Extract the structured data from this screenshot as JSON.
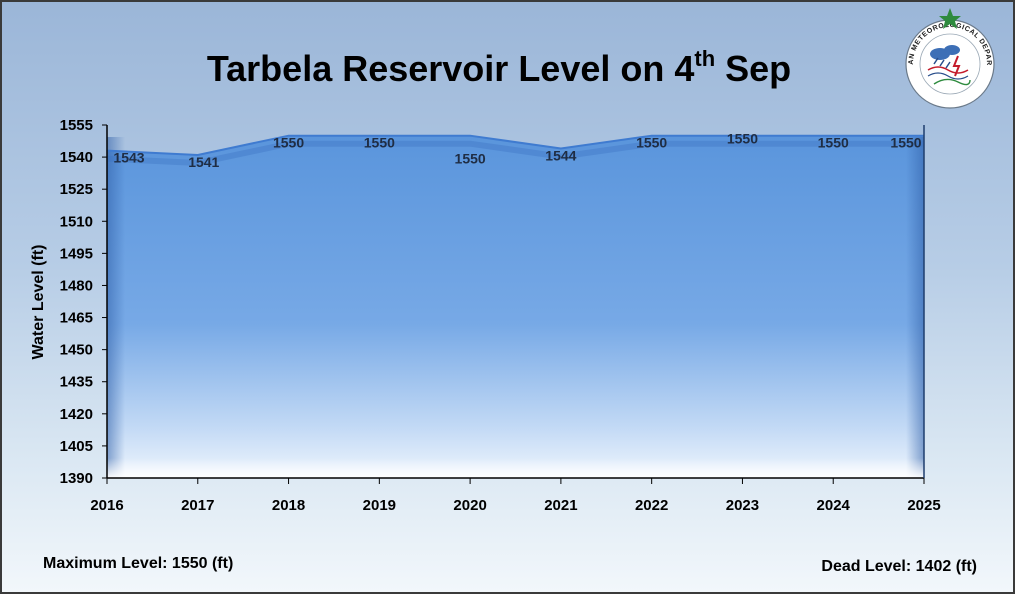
{
  "chart_data": {
    "type": "area",
    "title": "Tarbela Reservoir Level on 4th Sep",
    "title_parts": {
      "main": "Tarbela Reservoir Level on 4",
      "sup": "th",
      "tail": " Sep"
    },
    "xlabel": "",
    "ylabel": "Water Level (ft)",
    "categories": [
      "2016",
      "2017",
      "2018",
      "2019",
      "2020",
      "2021",
      "2022",
      "2023",
      "2024",
      "2025"
    ],
    "values": [
      1543,
      1541,
      1550,
      1550,
      1550,
      1544,
      1550,
      1550,
      1550,
      1550
    ],
    "data_labels": [
      "1543",
      "1541",
      "1550",
      "1550",
      "1550",
      "1544",
      "1550",
      "1550",
      "1550",
      "1550"
    ],
    "ylim": [
      1390,
      1555
    ],
    "yticks": [
      1390,
      1405,
      1420,
      1435,
      1450,
      1465,
      1480,
      1495,
      1510,
      1525,
      1540,
      1555
    ],
    "grid": false,
    "legend": "none",
    "colors": {
      "fill_top": "#5a95dc",
      "fill_bottom": "#e3eefc",
      "line": "#3f7bd0",
      "label": "#1f2d44"
    }
  },
  "footer": {
    "max_level": "Maximum Level: 1550 (ft)",
    "dead_level": "Dead Level: 1402 (ft)"
  },
  "logo": {
    "icon": "pmd-seal-icon",
    "text": "PAKISTAN METEOROLOGICAL DEPARTMENT"
  }
}
